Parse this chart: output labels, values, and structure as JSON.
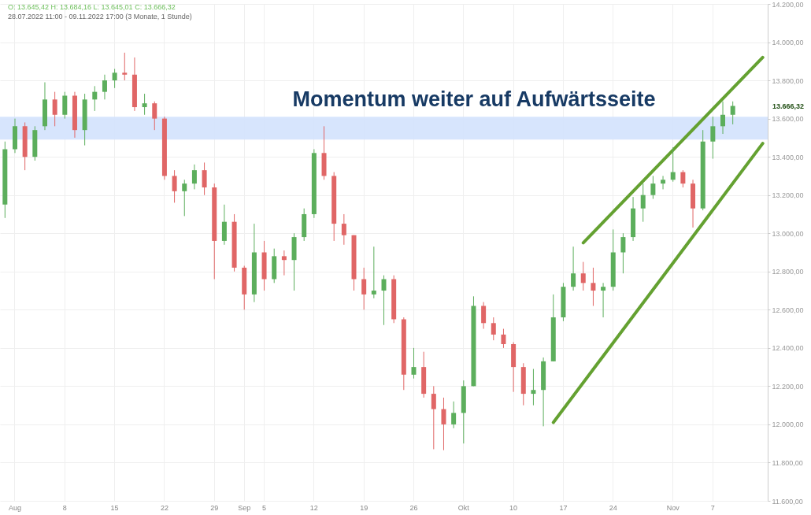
{
  "chart_data": {
    "type": "candlestick",
    "title": "Momentum weiter auf Aufwärtsseite",
    "annotations": [
      "O: 13.645,42  H: 13.684,16  L: 13.645,01  C: 13.666,32",
      "28.07.2022 11:00 - 09.11.2022 17:00  (3 Monate, 1 Stunde)",
      "13.666,32"
    ],
    "categories": [
      null,
      "Aug",
      null,
      null,
      null,
      null,
      "8",
      null,
      null,
      null,
      null,
      "15",
      null,
      null,
      null,
      null,
      "22",
      null,
      null,
      null,
      null,
      "29",
      null,
      null,
      "Sep",
      null,
      "5",
      null,
      null,
      null,
      null,
      "12",
      null,
      null,
      null,
      null,
      "19",
      null,
      null,
      null,
      null,
      "26",
      null,
      null,
      null,
      null,
      "Okt",
      null,
      null,
      null,
      null,
      "10",
      null,
      null,
      null,
      null,
      "17",
      null,
      null,
      null,
      null,
      "24",
      null,
      null,
      null,
      null,
      null,
      "Nov",
      null,
      null,
      null,
      "7",
      null,
      null,
      null,
      null,
      null
    ],
    "ohlc": [
      [
        13150,
        13480,
        13080,
        13440
      ],
      [
        13440,
        13600,
        13420,
        13560
      ],
      [
        13560,
        13580,
        13330,
        13400
      ],
      [
        13400,
        13560,
        13380,
        13540
      ],
      [
        13560,
        13790,
        13540,
        13700
      ],
      [
        13700,
        13740,
        13560,
        13620
      ],
      [
        13620,
        13740,
        13600,
        13720
      ],
      [
        13720,
        13740,
        13500,
        13540
      ],
      [
        13540,
        13730,
        13460,
        13700
      ],
      [
        13700,
        13770,
        13640,
        13740
      ],
      [
        13740,
        13830,
        13700,
        13800
      ],
      [
        13800,
        13860,
        13760,
        13840
      ],
      [
        13840,
        13945,
        13800,
        13830
      ],
      [
        13830,
        13920,
        13640,
        13660
      ],
      [
        13660,
        13730,
        13620,
        13680
      ],
      [
        13680,
        13690,
        13540,
        13600
      ],
      [
        13600,
        13610,
        13280,
        13300
      ],
      [
        13300,
        13330,
        13160,
        13220
      ],
      [
        13220,
        13280,
        13090,
        13260
      ],
      [
        13260,
        13360,
        13230,
        13330
      ],
      [
        13330,
        13370,
        13200,
        13240
      ],
      [
        13240,
        13260,
        12760,
        12960
      ],
      [
        12960,
        13150,
        12940,
        13060
      ],
      [
        13060,
        13100,
        12800,
        12820
      ],
      [
        12820,
        12830,
        12600,
        12680
      ],
      [
        12680,
        13050,
        12640,
        12900
      ],
      [
        12900,
        12960,
        12700,
        12760
      ],
      [
        12760,
        12920,
        12740,
        12880
      ],
      [
        12880,
        12910,
        12780,
        12860
      ],
      [
        12860,
        13000,
        12700,
        12980
      ],
      [
        12980,
        13130,
        12960,
        13100
      ],
      [
        13100,
        13440,
        13080,
        13420
      ],
      [
        13420,
        13560,
        13280,
        13300
      ],
      [
        13300,
        13320,
        12960,
        13050
      ],
      [
        13050,
        13100,
        12940,
        12990
      ],
      [
        12990,
        12990,
        12700,
        12760
      ],
      [
        12760,
        12820,
        12600,
        12680
      ],
      [
        12680,
        12930,
        12660,
        12700
      ],
      [
        12700,
        12780,
        12520,
        12760
      ],
      [
        12760,
        12780,
        12530,
        12550
      ],
      [
        12550,
        12560,
        12180,
        12260
      ],
      [
        12260,
        12400,
        12240,
        12300
      ],
      [
        12300,
        12380,
        12140,
        12160
      ],
      [
        12160,
        12200,
        11870,
        12080
      ],
      [
        12080,
        12140,
        11865,
        12000
      ],
      [
        12000,
        12120,
        11980,
        12060
      ],
      [
        12060,
        12230,
        11900,
        12200
      ],
      [
        12200,
        12670,
        12200,
        12620
      ],
      [
        12620,
        12640,
        12500,
        12530
      ],
      [
        12530,
        12560,
        12440,
        12470
      ],
      [
        12470,
        12500,
        12400,
        12420
      ],
      [
        12420,
        12430,
        12170,
        12300
      ],
      [
        12300,
        12320,
        12100,
        12160
      ],
      [
        12160,
        12290,
        12100,
        12180
      ],
      [
        12180,
        12350,
        11990,
        12330
      ],
      [
        12330,
        12680,
        12330,
        12560
      ],
      [
        12560,
        12740,
        12540,
        12720
      ],
      [
        12720,
        12930,
        12700,
        12790
      ],
      [
        12790,
        12850,
        12700,
        12740
      ],
      [
        12740,
        12820,
        12620,
        12700
      ],
      [
        12700,
        12740,
        12560,
        12720
      ],
      [
        12720,
        13020,
        12700,
        12900
      ],
      [
        12900,
        13000,
        12790,
        12980
      ],
      [
        12980,
        13190,
        12960,
        13130
      ],
      [
        13130,
        13260,
        13060,
        13200
      ],
      [
        13200,
        13300,
        13180,
        13260
      ],
      [
        13260,
        13300,
        13230,
        13280
      ],
      [
        13280,
        13450,
        13270,
        13320
      ],
      [
        13320,
        13330,
        13240,
        13260
      ],
      [
        13260,
        13280,
        13030,
        13130
      ],
      [
        13130,
        13540,
        13120,
        13480
      ],
      [
        13480,
        13610,
        13390,
        13560
      ],
      [
        13560,
        13690,
        13520,
        13620
      ],
      [
        13620,
        13690,
        13570,
        13666.32
      ],
      null,
      null,
      null
    ],
    "colors": [
      "#5cae5c",
      "#5cae5c",
      "#e06666",
      "#5cae5c",
      "#5cae5c",
      "#e06666",
      "#5cae5c",
      "#e06666",
      "#5cae5c",
      "#5cae5c",
      "#5cae5c",
      "#5cae5c",
      "#e06666",
      "#e06666",
      "#5cae5c",
      "#e06666",
      "#e06666",
      "#e06666",
      "#5cae5c",
      "#5cae5c",
      "#e06666",
      "#e06666",
      "#5cae5c",
      "#e06666",
      "#e06666",
      "#5cae5c",
      "#e06666",
      "#5cae5c",
      "#e06666",
      "#5cae5c",
      "#5cae5c",
      "#5cae5c",
      "#e06666",
      "#e06666",
      "#e06666",
      "#e06666",
      "#e06666",
      "#5cae5c",
      "#5cae5c",
      "#e06666",
      "#e06666",
      "#5cae5c",
      "#e06666",
      "#e06666",
      "#e06666",
      "#5cae5c",
      "#5cae5c",
      "#5cae5c",
      "#e06666",
      "#e06666",
      "#e06666",
      "#e06666",
      "#e06666",
      "#5cae5c",
      "#5cae5c",
      "#5cae5c",
      "#5cae5c",
      "#5cae5c",
      "#e06666",
      "#e06666",
      "#5cae5c",
      "#5cae5c",
      "#5cae5c",
      "#5cae5c",
      "#5cae5c",
      "#5cae5c",
      "#5cae5c",
      "#5cae5c",
      "#e06666",
      "#e06666",
      "#5cae5c",
      "#5cae5c",
      "#5cae5c",
      "#5cae5c",
      null,
      null,
      null
    ],
    "series": [
      {
        "type": "line",
        "color": "#64a131",
        "values": [
          null,
          null,
          null,
          null,
          null,
          null,
          null,
          null,
          null,
          null,
          null,
          null,
          null,
          null,
          null,
          null,
          null,
          null,
          null,
          null,
          null,
          null,
          null,
          null,
          null,
          null,
          null,
          null,
          null,
          null,
          null,
          null,
          null,
          null,
          null,
          null,
          null,
          null,
          null,
          null,
          null,
          null,
          null,
          null,
          null,
          null,
          null,
          null,
          null,
          null,
          null,
          null,
          null,
          null,
          null,
          null,
          null,
          null,
          12950,
          null,
          null,
          null,
          null,
          null,
          null,
          null,
          null,
          null,
          null,
          null,
          null,
          null,
          null,
          null,
          null,
          null,
          13920
        ]
      },
      {
        "type": "line",
        "color": "#64a131",
        "values": [
          null,
          null,
          null,
          null,
          null,
          null,
          null,
          null,
          null,
          null,
          null,
          null,
          null,
          null,
          null,
          null,
          null,
          null,
          null,
          null,
          null,
          null,
          null,
          null,
          null,
          null,
          null,
          null,
          null,
          null,
          null,
          null,
          null,
          null,
          null,
          null,
          null,
          null,
          null,
          null,
          null,
          null,
          null,
          null,
          null,
          null,
          null,
          null,
          null,
          null,
          null,
          null,
          null,
          null,
          null,
          12010,
          null,
          null,
          null,
          null,
          null,
          null,
          null,
          null,
          null,
          null,
          null,
          null,
          null,
          null,
          null,
          null,
          null,
          null,
          null,
          null,
          13470
        ]
      }
    ],
    "bands": [
      {
        "axis": "y",
        "from": 13490,
        "to": 13610,
        "color": "#d3e2fd"
      }
    ],
    "ylim": [
      11600,
      14200
    ],
    "yticks": [
      {
        "value": 11600,
        "label": "11.600,00"
      },
      {
        "value": 11800,
        "label": "11.800,00"
      },
      {
        "value": 12000,
        "label": "12.000,00"
      },
      {
        "value": 12200,
        "label": "12.200,00"
      },
      {
        "value": 12400,
        "label": "12.400,00"
      },
      {
        "value": 12600,
        "label": "12.600,00"
      },
      {
        "value": 12800,
        "label": "12.800,00"
      },
      {
        "value": 13000,
        "label": "13.000,00"
      },
      {
        "value": 13200,
        "label": "13.200,00"
      },
      {
        "value": 13400,
        "label": "13.400,00"
      },
      {
        "value": 13600,
        "label": "13.600,00"
      },
      {
        "value": 13800,
        "label": "13.800,00"
      },
      {
        "value": 14000,
        "label": "14.000,00"
      },
      {
        "value": 14200,
        "label": "14.200,00"
      }
    ],
    "grid": true,
    "line_style": "solid"
  }
}
